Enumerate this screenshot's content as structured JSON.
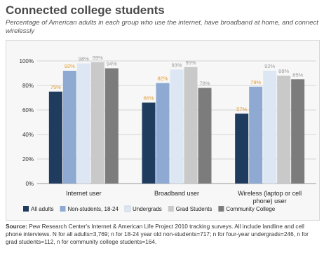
{
  "header": {
    "title": "Connected college students",
    "subtitle": "Percentage of American adults in each group who use the internet, have broadband at home, and connect wirelessly"
  },
  "source": {
    "label": "Source:",
    "text": "Pew Research Center's Internet & American Life Project 2010 tracking surveys. All include landline and cell phone interviews. N for all adults=3,769; n for 18-24 year old non-students=717; n for four-year undergrads=246, n for grad students=112, n for community college students=164."
  },
  "chart_data": {
    "type": "bar",
    "title": "Connected college students",
    "categories": [
      "Internet user",
      "Broadband user",
      "Wireless (laptop or cell phone) user"
    ],
    "category_lines": [
      [
        "Internet user"
      ],
      [
        "Broadband user"
      ],
      [
        "Wireless (laptop or cell",
        "phone) user"
      ]
    ],
    "series": [
      {
        "name": "All adults",
        "values": [
          75,
          66,
          57
        ],
        "labels": [
          "75%",
          "66%",
          "57%"
        ],
        "color": "#1f3b5e"
      },
      {
        "name": "Non-students, 18-24",
        "values": [
          92,
          82,
          79
        ],
        "labels": [
          "92%",
          "82%",
          "79%"
        ],
        "color": "#8eaad3"
      },
      {
        "name": "Undergrads",
        "values": [
          98,
          93,
          92
        ],
        "labels": [
          "98%",
          "93%",
          "92%"
        ],
        "color": "#dde7f3"
      },
      {
        "name": "Grad Students",
        "values": [
          99,
          95,
          88
        ],
        "labels": [
          "99%",
          "95%",
          "88%"
        ],
        "color": "#c9c9c9"
      },
      {
        "name": "Community College",
        "values": [
          94,
          78,
          85
        ],
        "labels": [
          "94%",
          "78%",
          "85%"
        ],
        "color": "#7c7c7c"
      }
    ],
    "label_colors": [
      "#e39a2e",
      "#e39a2e",
      "#9a9a9a",
      "#9a9a9a",
      "#9a9a9a"
    ],
    "ylim": [
      0,
      100
    ],
    "y_ticks": [
      0,
      20,
      40,
      60,
      80,
      100
    ],
    "y_tick_labels": [
      "0%",
      "20%",
      "40%",
      "60%",
      "80%",
      "100%"
    ],
    "grid": true,
    "legend": "bottom"
  }
}
